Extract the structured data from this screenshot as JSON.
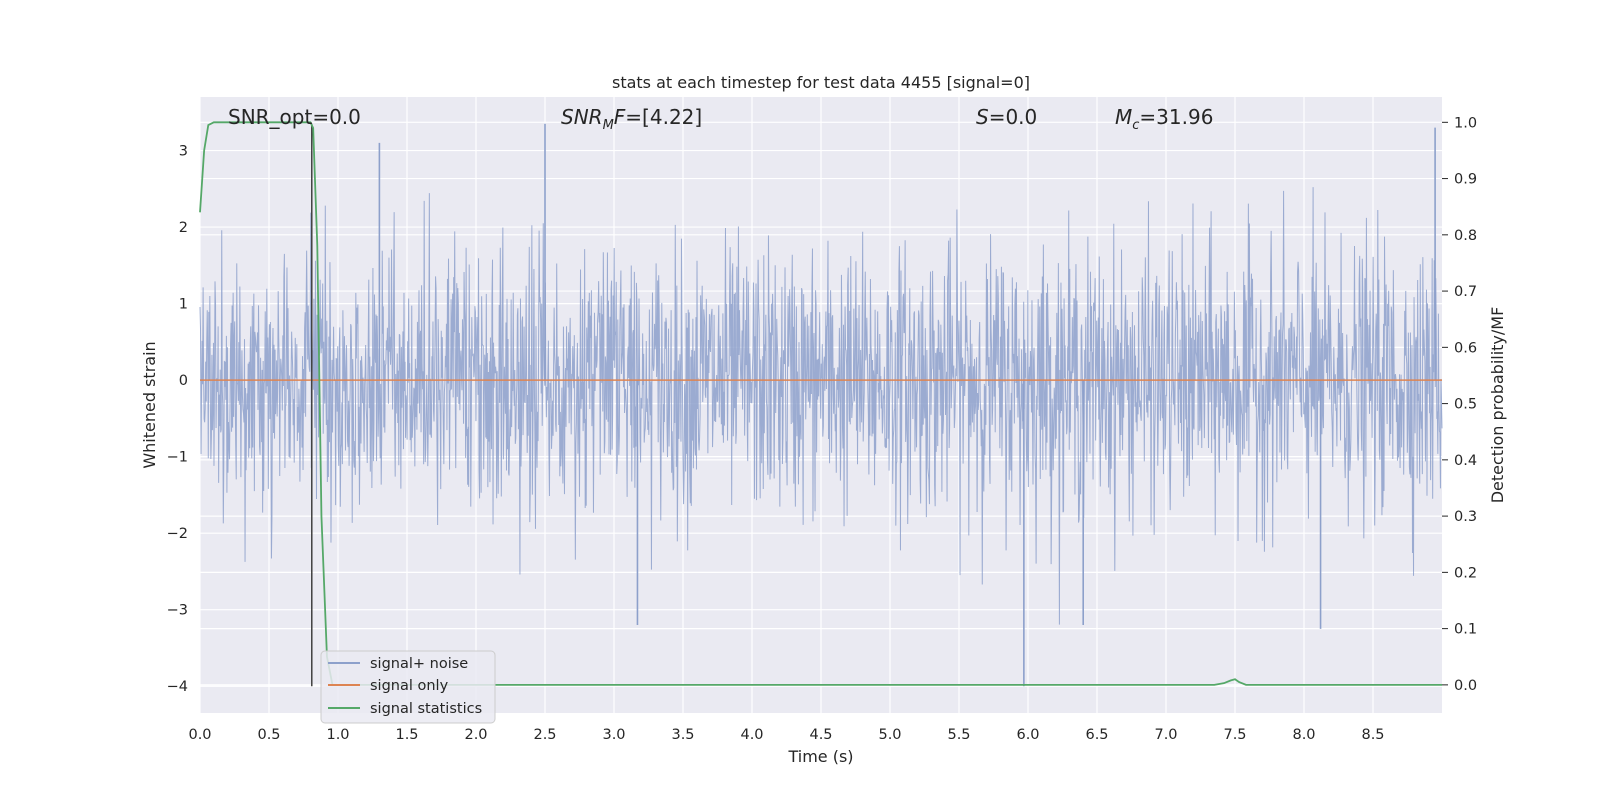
{
  "chart_data": {
    "type": "line",
    "title": "stats at each timestep for test data 4455 [signal=0]",
    "xlabel": "Time (s)",
    "ylabel_left": "Whitened strain",
    "ylabel_right": "Detection probability/MF",
    "xlim": [
      0.0,
      9.0
    ],
    "ylim_left": [
      -4.35,
      3.7
    ],
    "ylim_right": [
      -0.05,
      1.045
    ],
    "x_ticks": [
      "0.0",
      "0.5",
      "1.0",
      "1.5",
      "2.0",
      "2.5",
      "3.0",
      "3.5",
      "4.0",
      "4.5",
      "5.0",
      "5.5",
      "6.0",
      "6.5",
      "7.0",
      "7.5",
      "8.0",
      "8.5"
    ],
    "y_ticks_left": [
      "3",
      "2",
      "1",
      "0",
      "−1",
      "−2",
      "−3",
      "−4"
    ],
    "y_ticks_right": [
      "1.0",
      "0.9",
      "0.8",
      "0.7",
      "0.6",
      "0.5",
      "0.4",
      "0.3",
      "0.2",
      "0.1",
      "0.0"
    ],
    "grid": true,
    "legend_position": "lower-left",
    "annotations": {
      "snr_opt": "SNR_opt=0.0",
      "snr_mf_symbol": "SNR",
      "snr_mf_sub": "M",
      "snr_mf_italic": "F",
      "snr_mf_value": "=[4.22]",
      "s_symbol": "S",
      "s_value": "=0.0",
      "mc_symbol": "M",
      "mc_sub": "c",
      "mc_value": "=31.96"
    },
    "vertical_marker_x": 0.81,
    "series": [
      {
        "name": "signal+ noise",
        "color": "#8da0cb",
        "axis": "left",
        "description_range": [
          -4.0,
          3.3
        ],
        "notable_peaks": [
          {
            "x": 2.5,
            "y": 3.35
          },
          {
            "x": 8.95,
            "y": 3.3
          },
          {
            "x": 1.3,
            "y": 3.1
          },
          {
            "x": 5.97,
            "y": -4.0
          },
          {
            "x": 3.17,
            "y": -3.2
          },
          {
            "x": 8.12,
            "y": -3.25
          },
          {
            "x": 6.4,
            "y": -3.2
          }
        ]
      },
      {
        "name": "signal only",
        "color": "#dd8452",
        "axis": "left",
        "x": [
          0.0,
          9.0
        ],
        "y": [
          0.0,
          0.0
        ]
      },
      {
        "name": "signal statistics",
        "color": "#55a868",
        "axis": "right",
        "x": [
          0.0,
          0.03,
          0.06,
          0.1,
          0.15,
          0.3,
          0.5,
          0.7,
          0.8,
          0.82,
          0.85,
          0.88,
          0.92,
          0.96,
          1.0,
          7.35,
          7.42,
          7.47,
          7.5,
          7.53,
          7.58,
          9.0
        ],
        "y": [
          0.84,
          0.95,
          0.995,
          1.0,
          1.0,
          1.0,
          1.0,
          1.0,
          1.0,
          0.99,
          0.78,
          0.3,
          0.05,
          0.0,
          0.0,
          0.0,
          0.003,
          0.008,
          0.01,
          0.005,
          0.0,
          0.0
        ]
      }
    ]
  },
  "colors": {
    "axes_background": "#eaeaf2",
    "grid": "#ffffff",
    "marker_line": "#404040"
  }
}
